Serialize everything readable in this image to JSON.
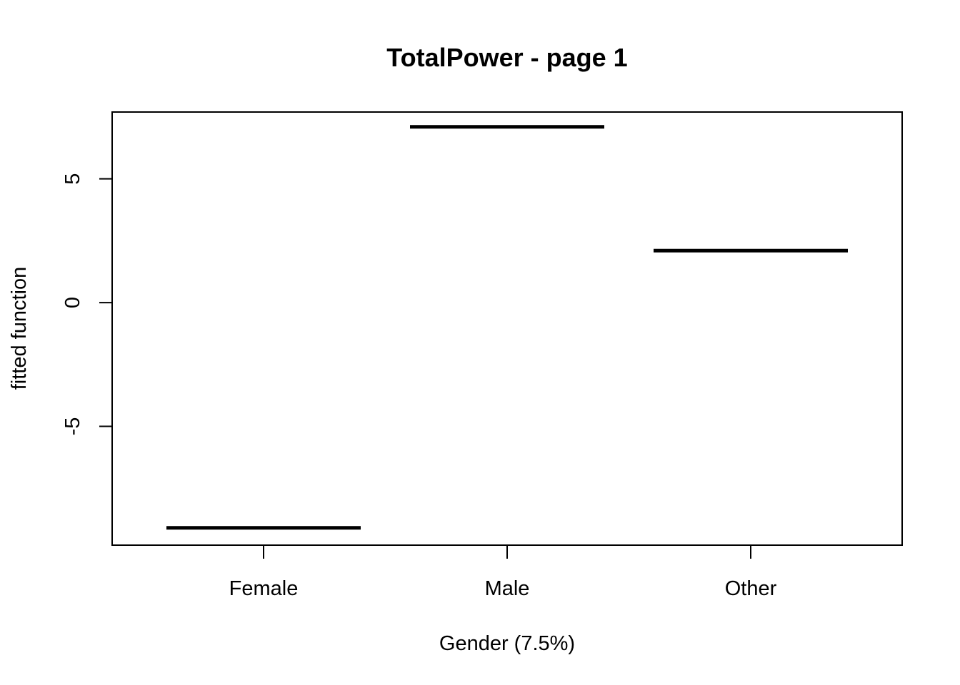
{
  "chart_data": {
    "type": "step",
    "title": "TotalPower - page 1",
    "xlabel": "Gender  (7.5%)",
    "ylabel": "fitted function",
    "categories": [
      "Female",
      "Male",
      "Other"
    ],
    "values": [
      -9.1,
      7.1,
      2.1
    ],
    "ylim": [
      -9.8,
      7.7
    ],
    "yticks": [
      -5,
      0,
      5
    ],
    "ytick_labels": [
      "-5",
      "0",
      "5"
    ],
    "grid": false,
    "legend": "none"
  },
  "colors": {
    "line": "#000000",
    "frame": "#000000",
    "background": "#ffffff"
  }
}
